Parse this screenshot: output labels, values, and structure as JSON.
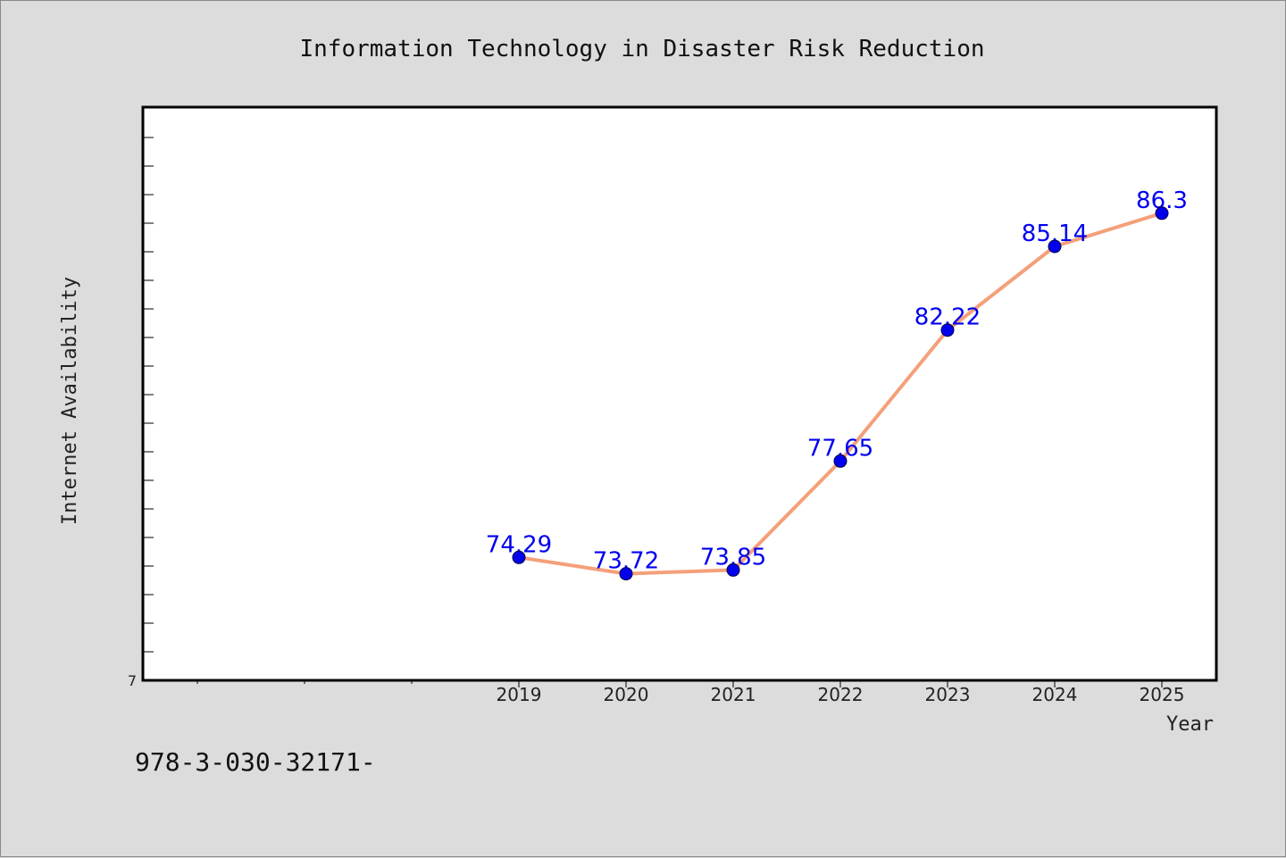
{
  "chart_data": {
    "type": "line",
    "title": "Information Technology in Disaster Risk Reduction",
    "xlabel": "Year",
    "ylabel": "Internet Availability",
    "x": [
      "2019",
      "2020",
      "2021",
      "2022",
      "2023",
      "2024",
      "2025"
    ],
    "series": [
      {
        "values": [
          74.29,
          73.72,
          73.85,
          77.65,
          82.22,
          85.14,
          86.3
        ],
        "labels": [
          "74.29",
          "73.72",
          "73.85",
          "77.65",
          "82.22",
          "85.14",
          "86.3"
        ]
      }
    ],
    "y_tick_label": "7",
    "ylim": [
      70,
      90
    ],
    "grid": false,
    "line_color": "#f4a07a",
    "marker_color": "#0000ee",
    "label_color": "#0000ee"
  },
  "footer_text": "978-3-030-32171-"
}
